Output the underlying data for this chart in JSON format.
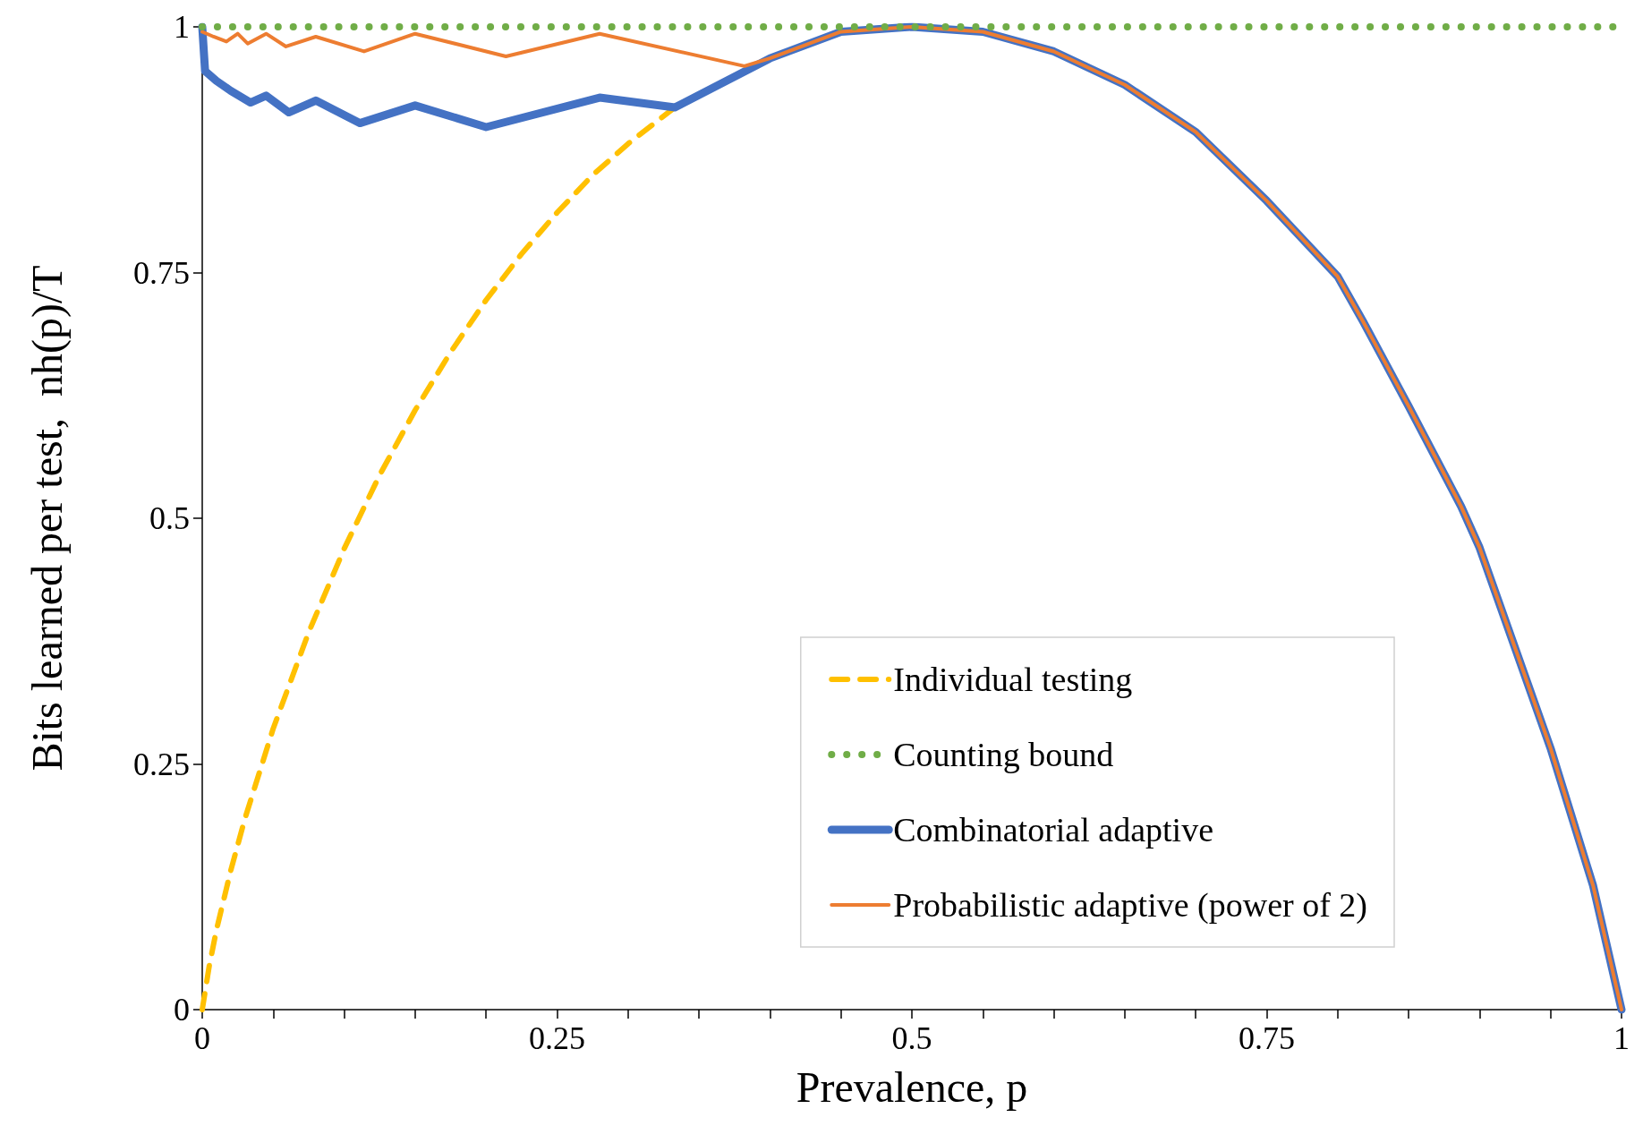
{
  "chart_data": {
    "type": "line",
    "xlabel": "Prevalence, p",
    "ylabel": "Bits learned per test,  nh(p)/T",
    "xlim": [
      0,
      1
    ],
    "ylim": [
      0,
      1
    ],
    "xticks": [
      0,
      {
        "value": 0.05,
        "label": null
      },
      {
        "value": 0.1,
        "label": null
      },
      {
        "value": 0.15,
        "label": null
      },
      {
        "value": 0.2,
        "label": null
      },
      0.25,
      {
        "value": 0.3,
        "label": null
      },
      {
        "value": 0.35,
        "label": null
      },
      {
        "value": 0.4,
        "label": null
      },
      {
        "value": 0.45,
        "label": null
      },
      0.5,
      {
        "value": 0.55,
        "label": null
      },
      {
        "value": 0.6,
        "label": null
      },
      {
        "value": 0.65,
        "label": null
      },
      {
        "value": 0.7,
        "label": null
      },
      0.75,
      {
        "value": 0.8,
        "label": null
      },
      {
        "value": 0.85,
        "label": null
      },
      {
        "value": 0.9,
        "label": null
      },
      {
        "value": 0.95,
        "label": null
      },
      1
    ],
    "yticks": [
      0,
      0.25,
      0.5,
      0.75,
      1
    ],
    "grid": false,
    "legend": "bottom right",
    "marker": "none",
    "series": [
      {
        "name": "Individual testing",
        "color": "#ffc000",
        "line_style": "dashed",
        "x": [
          0,
          0.005,
          0.01,
          0.02,
          0.03,
          0.05,
          0.075,
          0.1,
          0.125,
          0.15,
          0.175,
          0.2,
          0.225,
          0.25,
          0.275,
          0.3,
          0.333
        ],
        "values": [
          0,
          0.045,
          0.081,
          0.141,
          0.194,
          0.286,
          0.384,
          0.469,
          0.544,
          0.61,
          0.669,
          0.722,
          0.769,
          0.811,
          0.849,
          0.881,
          0.918
        ]
      },
      {
        "name": "Counting bound",
        "color": "#70ad47",
        "line_style": "dotted",
        "x": [
          0,
          1
        ],
        "values": [
          1,
          1
        ]
      },
      {
        "name": "Combinatorial adaptive",
        "color": "#4472c4",
        "line_style": "solid",
        "x": [
          0,
          0.002,
          0.01,
          0.02,
          0.034,
          0.045,
          0.061,
          0.08,
          0.111,
          0.15,
          0.2,
          0.28,
          0.333,
          0.4,
          0.45,
          0.5,
          0.55,
          0.6,
          0.65,
          0.7,
          0.75,
          0.8,
          0.818,
          0.85,
          0.887,
          0.9,
          0.95,
          0.98,
          1
        ],
        "values": [
          1,
          0.955,
          0.945,
          0.935,
          0.923,
          0.93,
          0.913,
          0.925,
          0.902,
          0.92,
          0.898,
          0.928,
          0.918,
          0.968,
          0.995,
          1,
          0.995,
          0.975,
          0.941,
          0.893,
          0.823,
          0.746,
          0.7,
          0.614,
          0.512,
          0.47,
          0.266,
          0.126,
          0
        ]
      },
      {
        "name": "Probabilistic adaptive (power of 2)",
        "color": "#ed7d31",
        "line_style": "solid",
        "x": [
          0,
          0.008,
          0.017,
          0.025,
          0.032,
          0.045,
          0.059,
          0.08,
          0.114,
          0.15,
          0.214,
          0.28,
          0.382,
          0.4,
          0.45,
          0.5,
          0.55,
          0.6,
          0.65,
          0.7,
          0.75,
          0.8,
          0.818,
          0.85,
          0.887,
          0.9,
          0.95,
          0.98,
          1
        ],
        "values": [
          0.995,
          0.99,
          0.985,
          0.993,
          0.983,
          0.993,
          0.98,
          0.99,
          0.975,
          0.993,
          0.97,
          0.993,
          0.96,
          0.968,
          0.995,
          1,
          0.995,
          0.975,
          0.941,
          0.893,
          0.823,
          0.746,
          0.7,
          0.614,
          0.512,
          0.47,
          0.266,
          0.126,
          0
        ]
      }
    ]
  }
}
